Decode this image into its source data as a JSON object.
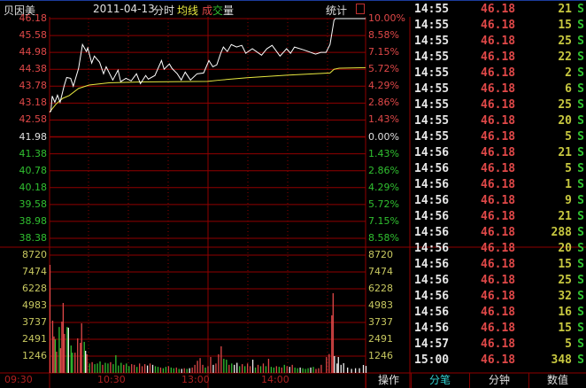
{
  "header": {
    "stock": "贝因美",
    "date": "2011-04-13",
    "mode": "分时",
    "avg_line": "均线",
    "vol_1": "成",
    "vol_2": "交",
    "vol_3": "量",
    "stats": "统计"
  },
  "colors": {
    "up": "#e04848",
    "down": "#30c030",
    "neutral": "#e0e0e0",
    "avg": "#e8e840",
    "grid": "#900000",
    "volume_label": "#c8c860"
  },
  "price_axis": {
    "left": [
      "46.18",
      "45.58",
      "44.98",
      "44.38",
      "43.78",
      "43.18",
      "42.58",
      "41.98",
      "41.38",
      "40.78",
      "40.18",
      "39.58",
      "38.98",
      "38.38"
    ],
    "right": [
      "10.00%",
      "8.58%",
      "7.15%",
      "5.72%",
      "4.29%",
      "2.86%",
      "1.43%",
      "0.00%",
      "1.43%",
      "2.86%",
      "4.29%",
      "5.72%",
      "7.15%",
      "8.58%"
    ]
  },
  "volume_axis": [
    "8720",
    "7474",
    "6228",
    "4983",
    "3737",
    "2491",
    "1246"
  ],
  "time_axis": [
    "09:30",
    "10:30",
    "13:00",
    "14:00"
  ],
  "chart_data": {
    "type": "line",
    "price_range": [
      38.38,
      46.18
    ],
    "prev_close": 41.98,
    "volume_range": [
      0,
      8720
    ],
    "price": [
      [
        "09:30",
        42.86
      ],
      [
        "09:31",
        42.89
      ],
      [
        "09:32",
        43.43
      ],
      [
        "09:34",
        43.21
      ],
      [
        "09:36",
        43.46
      ],
      [
        "09:38",
        43.21
      ],
      [
        "09:41",
        43.78
      ],
      [
        "09:43",
        44.09
      ],
      [
        "09:46",
        44.06
      ],
      [
        "09:48",
        43.78
      ],
      [
        "09:52",
        44.41
      ],
      [
        "09:55",
        45.26
      ],
      [
        "09:58",
        45.01
      ],
      [
        "09:59",
        45.14
      ],
      [
        "10:02",
        44.6
      ],
      [
        "10:04",
        44.85
      ],
      [
        "10:08",
        44.63
      ],
      [
        "10:11",
        44.22
      ],
      [
        "10:13",
        44.47
      ],
      [
        "10:18",
        44.0
      ],
      [
        "10:22",
        44.35
      ],
      [
        "10:24",
        43.94
      ],
      [
        "10:28",
        44.06
      ],
      [
        "10:32",
        43.97
      ],
      [
        "10:36",
        44.22
      ],
      [
        "10:39",
        43.87
      ],
      [
        "10:43",
        44.16
      ],
      [
        "10:45",
        44.03
      ],
      [
        "10:50",
        44.16
      ],
      [
        "10:55",
        44.69
      ],
      [
        "10:57",
        44.38
      ],
      [
        "11:01",
        44.57
      ],
      [
        "11:03",
        44.41
      ],
      [
        "11:07",
        44.22
      ],
      [
        "11:10",
        44.0
      ],
      [
        "11:13",
        44.28
      ],
      [
        "11:17",
        44.0
      ],
      [
        "11:22",
        44.22
      ],
      [
        "11:27",
        44.25
      ],
      [
        "13:01",
        44.69
      ],
      [
        "13:04",
        44.47
      ],
      [
        "13:07",
        44.54
      ],
      [
        "13:10",
        44.95
      ],
      [
        "13:12",
        45.17
      ],
      [
        "13:15",
        45.01
      ],
      [
        "13:18",
        45.26
      ],
      [
        "13:22",
        45.17
      ],
      [
        "13:26",
        45.23
      ],
      [
        "13:29",
        44.95
      ],
      [
        "13:34",
        45.11
      ],
      [
        "13:41",
        44.88
      ],
      [
        "13:45",
        45.11
      ],
      [
        "13:49",
        45.23
      ],
      [
        "13:55",
        44.85
      ],
      [
        "14:00",
        45.11
      ],
      [
        "14:03",
        44.95
      ],
      [
        "14:06",
        45.17
      ],
      [
        "14:13",
        45.07
      ],
      [
        "14:22",
        44.92
      ],
      [
        "14:26",
        44.98
      ],
      [
        "14:30",
        44.98
      ],
      [
        "14:33",
        45.26
      ],
      [
        "14:36",
        46.12
      ],
      [
        "14:37",
        46.18
      ],
      [
        "15:00",
        46.18
      ]
    ],
    "avg": [
      [
        "09:30",
        42.86
      ],
      [
        "09:35",
        43.15
      ],
      [
        "09:40",
        43.35
      ],
      [
        "09:45",
        43.45
      ],
      [
        "09:52",
        43.7
      ],
      [
        "10:00",
        43.82
      ],
      [
        "10:15",
        43.9
      ],
      [
        "10:40",
        43.93
      ],
      [
        "11:30",
        43.95
      ],
      [
        "13:10",
        44.0
      ],
      [
        "13:30",
        44.08
      ],
      [
        "14:00",
        44.17
      ],
      [
        "14:33",
        44.25
      ],
      [
        "14:36",
        44.38
      ],
      [
        "14:40",
        44.42
      ],
      [
        "15:00",
        44.44
      ]
    ],
    "volume": [
      [
        "09:30",
        8000,
        "r"
      ],
      [
        "09:32",
        3870,
        "r"
      ],
      [
        "09:33",
        2700,
        "r"
      ],
      [
        "09:34",
        2490,
        "g"
      ],
      [
        "09:35",
        1570,
        "r"
      ],
      [
        "09:37",
        3400,
        "g"
      ],
      [
        "09:38",
        1830,
        "r"
      ],
      [
        "09:39",
        3800,
        "r"
      ],
      [
        "09:40",
        5180,
        "r"
      ],
      [
        "09:41",
        2890,
        "r"
      ],
      [
        "09:43",
        3400,
        "g"
      ],
      [
        "09:44",
        3350,
        "w"
      ],
      [
        "09:46",
        2030,
        "g"
      ],
      [
        "09:47",
        1500,
        "g"
      ],
      [
        "09:49",
        1500,
        "r"
      ],
      [
        "09:51",
        2560,
        "r"
      ],
      [
        "09:53",
        2230,
        "r"
      ],
      [
        "09:54",
        3670,
        "r"
      ],
      [
        "09:56",
        2300,
        "g"
      ],
      [
        "09:57",
        1640,
        "w"
      ],
      [
        "09:58",
        1380,
        "r"
      ],
      [
        "10:00",
        700,
        "g"
      ],
      [
        "10:02",
        800,
        "r"
      ],
      [
        "10:04",
        650,
        "g"
      ],
      [
        "10:06",
        700,
        "g"
      ],
      [
        "10:08",
        850,
        "g"
      ],
      [
        "10:10",
        600,
        "r"
      ],
      [
        "10:12",
        750,
        "g"
      ],
      [
        "10:14",
        700,
        "g"
      ],
      [
        "10:16",
        800,
        "r"
      ],
      [
        "10:18",
        650,
        "g"
      ],
      [
        "10:20",
        1310,
        "g"
      ],
      [
        "10:22",
        550,
        "g"
      ],
      [
        "10:24",
        750,
        "g"
      ],
      [
        "10:26",
        600,
        "r"
      ],
      [
        "10:28",
        700,
        "g"
      ],
      [
        "10:30",
        500,
        "g"
      ],
      [
        "10:32",
        650,
        "r"
      ],
      [
        "10:34",
        600,
        "r"
      ],
      [
        "10:36",
        450,
        "g"
      ],
      [
        "10:38",
        700,
        "r"
      ],
      [
        "10:40",
        500,
        "r"
      ],
      [
        "10:42",
        650,
        "r"
      ],
      [
        "10:44",
        550,
        "w"
      ],
      [
        "10:46",
        700,
        "r"
      ],
      [
        "10:48",
        600,
        "w"
      ],
      [
        "10:50",
        500,
        "g"
      ],
      [
        "10:52",
        450,
        "g"
      ],
      [
        "10:54",
        400,
        "r"
      ],
      [
        "10:56",
        350,
        "g"
      ],
      [
        "10:58",
        450,
        "g"
      ],
      [
        "11:00",
        500,
        "r"
      ],
      [
        "11:02",
        400,
        "g"
      ],
      [
        "11:04",
        350,
        "g"
      ],
      [
        "11:06",
        400,
        "r"
      ],
      [
        "11:08",
        300,
        "g"
      ],
      [
        "11:10",
        300,
        "w"
      ],
      [
        "11:12",
        350,
        "r"
      ],
      [
        "11:14",
        300,
        "g"
      ],
      [
        "11:16",
        350,
        "w"
      ],
      [
        "11:18",
        400,
        "r"
      ],
      [
        "11:20",
        600,
        "r"
      ],
      [
        "11:22",
        900,
        "r"
      ],
      [
        "11:24",
        1100,
        "r"
      ],
      [
        "11:26",
        600,
        "r"
      ],
      [
        "11:28",
        400,
        "g"
      ],
      [
        "13:00",
        500,
        "r"
      ],
      [
        "13:02",
        1180,
        "r"
      ],
      [
        "13:04",
        600,
        "w"
      ],
      [
        "13:06",
        700,
        "r"
      ],
      [
        "13:08",
        1380,
        "r"
      ],
      [
        "13:10",
        1970,
        "r"
      ],
      [
        "13:12",
        1050,
        "g"
      ],
      [
        "13:14",
        980,
        "g"
      ],
      [
        "13:16",
        600,
        "r"
      ],
      [
        "13:18",
        700,
        "g"
      ],
      [
        "13:20",
        600,
        "w"
      ],
      [
        "13:22",
        750,
        "w"
      ],
      [
        "13:24",
        500,
        "g"
      ],
      [
        "13:26",
        650,
        "r"
      ],
      [
        "13:28",
        500,
        "g"
      ],
      [
        "13:30",
        700,
        "r"
      ],
      [
        "13:32",
        500,
        "r"
      ],
      [
        "13:34",
        980,
        "w"
      ],
      [
        "13:36",
        400,
        "g"
      ],
      [
        "13:38",
        600,
        "r"
      ],
      [
        "13:40",
        500,
        "g"
      ],
      [
        "13:42",
        700,
        "r"
      ],
      [
        "13:44",
        500,
        "g"
      ],
      [
        "13:46",
        1050,
        "r"
      ],
      [
        "13:48",
        450,
        "g"
      ],
      [
        "13:50",
        400,
        "g"
      ],
      [
        "13:52",
        500,
        "r"
      ],
      [
        "13:54",
        450,
        "g"
      ],
      [
        "13:56",
        400,
        "r"
      ],
      [
        "13:58",
        600,
        "g"
      ],
      [
        "14:00",
        500,
        "r"
      ],
      [
        "14:02",
        450,
        "w"
      ],
      [
        "14:04",
        600,
        "r"
      ],
      [
        "14:06",
        400,
        "g"
      ],
      [
        "14:08",
        350,
        "g"
      ],
      [
        "14:10",
        400,
        "w"
      ],
      [
        "14:12",
        350,
        "g"
      ],
      [
        "14:14",
        300,
        "g"
      ],
      [
        "14:16",
        350,
        "g"
      ],
      [
        "14:18",
        400,
        "w"
      ],
      [
        "14:20",
        450,
        "g"
      ],
      [
        "14:22",
        300,
        "r"
      ],
      [
        "14:24",
        350,
        "r"
      ],
      [
        "14:26",
        600,
        "r"
      ],
      [
        "14:30",
        1180,
        "r"
      ],
      [
        "14:32",
        1400,
        "r"
      ],
      [
        "14:34",
        4260,
        "r"
      ],
      [
        "14:35",
        5900,
        "r"
      ],
      [
        "14:36",
        1250,
        "w"
      ],
      [
        "14:38",
        700,
        "w"
      ],
      [
        "14:39",
        1180,
        "w"
      ],
      [
        "14:41",
        600,
        "w"
      ],
      [
        "14:43",
        720,
        "w"
      ],
      [
        "14:46",
        400,
        "w"
      ],
      [
        "14:49",
        300,
        "w"
      ],
      [
        "14:52",
        350,
        "w"
      ],
      [
        "14:55",
        350,
        "w"
      ],
      [
        "14:58",
        590,
        "w"
      ],
      [
        "15:00",
        520,
        "w"
      ]
    ]
  },
  "ticks": [
    {
      "time": "14:55",
      "price": "46.18",
      "vol": "21",
      "side": "S"
    },
    {
      "time": "14:55",
      "price": "46.18",
      "vol": "15",
      "side": "S"
    },
    {
      "time": "14:55",
      "price": "46.18",
      "vol": "25",
      "side": "S"
    },
    {
      "time": "14:55",
      "price": "46.18",
      "vol": "22",
      "side": "S"
    },
    {
      "time": "14:55",
      "price": "46.18",
      "vol": "2",
      "side": "S"
    },
    {
      "time": "14:55",
      "price": "46.18",
      "vol": "6",
      "side": "S"
    },
    {
      "time": "14:55",
      "price": "46.18",
      "vol": "25",
      "side": "S"
    },
    {
      "time": "14:55",
      "price": "46.18",
      "vol": "20",
      "side": "S"
    },
    {
      "time": "14:55",
      "price": "46.18",
      "vol": "5",
      "side": "S"
    },
    {
      "time": "14:56",
      "price": "46.18",
      "vol": "21",
      "side": "S"
    },
    {
      "time": "14:56",
      "price": "46.18",
      "vol": "5",
      "side": "S"
    },
    {
      "time": "14:56",
      "price": "46.18",
      "vol": "1",
      "side": "S"
    },
    {
      "time": "14:56",
      "price": "46.18",
      "vol": "9",
      "side": "S"
    },
    {
      "time": "14:56",
      "price": "46.18",
      "vol": "21",
      "side": "S"
    },
    {
      "time": "14:56",
      "price": "46.18",
      "vol": "288",
      "side": "S"
    },
    {
      "time": "14:56",
      "price": "46.18",
      "vol": "20",
      "side": "S"
    },
    {
      "time": "14:56",
      "price": "46.18",
      "vol": "15",
      "side": "S"
    },
    {
      "time": "14:56",
      "price": "46.18",
      "vol": "25",
      "side": "S"
    },
    {
      "time": "14:56",
      "price": "46.18",
      "vol": "32",
      "side": "S"
    },
    {
      "time": "14:56",
      "price": "46.18",
      "vol": "16",
      "side": "S"
    },
    {
      "time": "14:56",
      "price": "46.18",
      "vol": "15",
      "side": "S"
    },
    {
      "time": "14:57",
      "price": "46.18",
      "vol": "5",
      "side": "S"
    },
    {
      "time": "15:00",
      "price": "46.18",
      "vol": "348",
      "side": "S"
    }
  ],
  "bottom": {
    "operate": "操作",
    "tabs": [
      {
        "label": "分笔",
        "active": true
      },
      {
        "label": "分钟",
        "active": false
      },
      {
        "label": "数值",
        "active": false
      }
    ]
  }
}
